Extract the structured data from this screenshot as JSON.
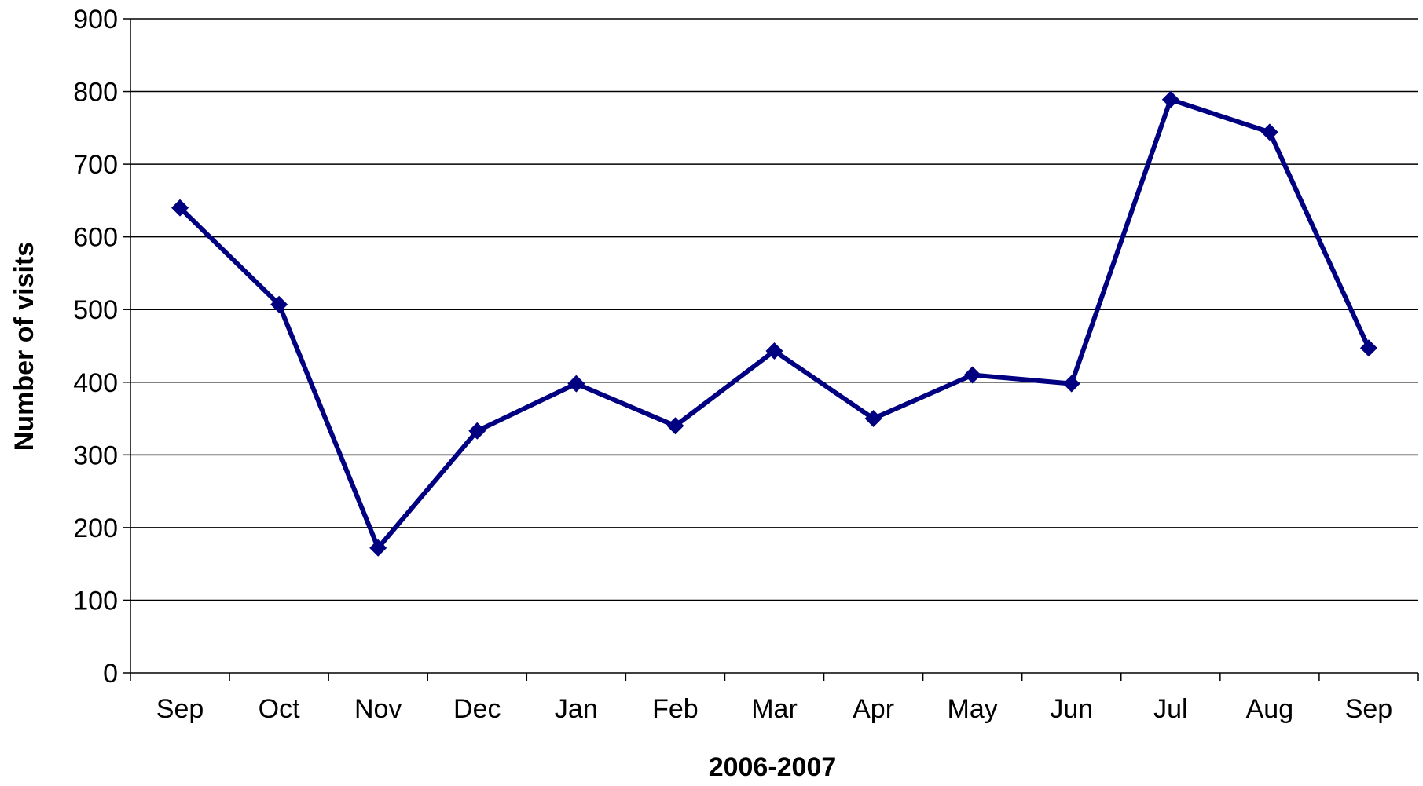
{
  "chart_data": {
    "type": "line",
    "title": "",
    "xlabel": "2006-2007",
    "ylabel": "Number of visits",
    "categories": [
      "Sep",
      "Oct",
      "Nov",
      "Dec",
      "Jan",
      "Feb",
      "Mar",
      "Apr",
      "May",
      "Jun",
      "Jul",
      "Aug",
      "Sep"
    ],
    "series": [
      {
        "values": [
          640,
          507,
          172,
          333,
          398,
          340,
          443,
          350,
          410,
          398,
          789,
          744,
          447
        ]
      }
    ],
    "ylim": [
      0,
      900
    ],
    "yticks": [
      0,
      100,
      200,
      300,
      400,
      500,
      600,
      700,
      800,
      900
    ],
    "grid": true,
    "legend": "none",
    "marker": "diamond",
    "colors": {
      "line": "#000080",
      "grid": "#000000",
      "axis": "#000000"
    }
  }
}
